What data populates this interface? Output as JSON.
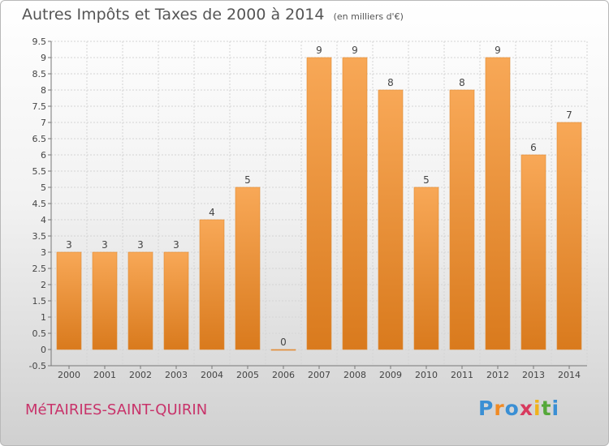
{
  "title": "Autres Impôts et Taxes de 2000 à 2014",
  "unit_label": "(en milliers d'€)",
  "commune": "MéTAIRIES-SAINT-QUIRIN",
  "logo": {
    "letters": [
      "P",
      "r",
      "o",
      "x",
      "i",
      "t",
      "i"
    ],
    "colors": [
      "#3a8fd4",
      "#f08a24",
      "#3a8fd4",
      "#d83a5e",
      "#f0b21c",
      "#55a83a",
      "#3a8fd4"
    ]
  },
  "chart_data": {
    "type": "bar",
    "categories": [
      "2000",
      "2001",
      "2002",
      "2003",
      "2004",
      "2005",
      "2006",
      "2007",
      "2008",
      "2009",
      "2010",
      "2011",
      "2012",
      "2013",
      "2014"
    ],
    "values": [
      3,
      3,
      3,
      3,
      4,
      5,
      0,
      9,
      9,
      8,
      5,
      8,
      9,
      6,
      7
    ],
    "value_labels": [
      "3",
      "3",
      "3",
      "3",
      "4",
      "5",
      "0",
      "9",
      "9",
      "8",
      "5",
      "8",
      "9",
      "6",
      "7"
    ],
    "y_ticks": [
      "-0.5",
      "0",
      "0.5",
      "1",
      "1.5",
      "2",
      "2.5",
      "3",
      "3.5",
      "4",
      "4.5",
      "5",
      "5.5",
      "6",
      "6.5",
      "7",
      "7.5",
      "8",
      "8.5",
      "9",
      "9.5"
    ],
    "ylim": [
      -0.5,
      9.5
    ],
    "grid": true,
    "bar_color": "#f0902e"
  }
}
